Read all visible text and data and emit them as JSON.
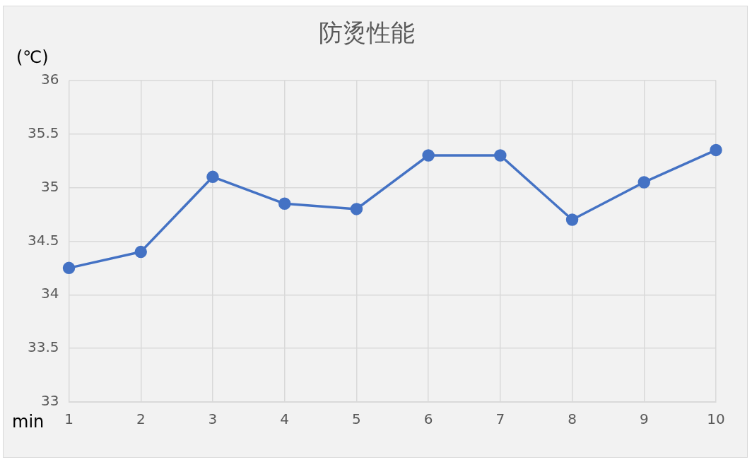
{
  "chart_data": {
    "type": "line",
    "title": "防烫性能",
    "xlabel": "min",
    "ylabel": "(℃)",
    "categories": [
      "1",
      "2",
      "3",
      "4",
      "5",
      "6",
      "7",
      "8",
      "9",
      "10"
    ],
    "series": [
      {
        "color": "#4472c4",
        "values": [
          34.25,
          34.4,
          35.1,
          34.85,
          34.8,
          35.3,
          35.3,
          34.7,
          35.05,
          35.35
        ]
      }
    ],
    "ylim": [
      33,
      36
    ],
    "yticks": [
      33,
      33.5,
      34,
      34.5,
      35,
      35.5,
      36
    ],
    "grid": true,
    "legend": false,
    "marker": "circle",
    "line_style": "solid"
  }
}
